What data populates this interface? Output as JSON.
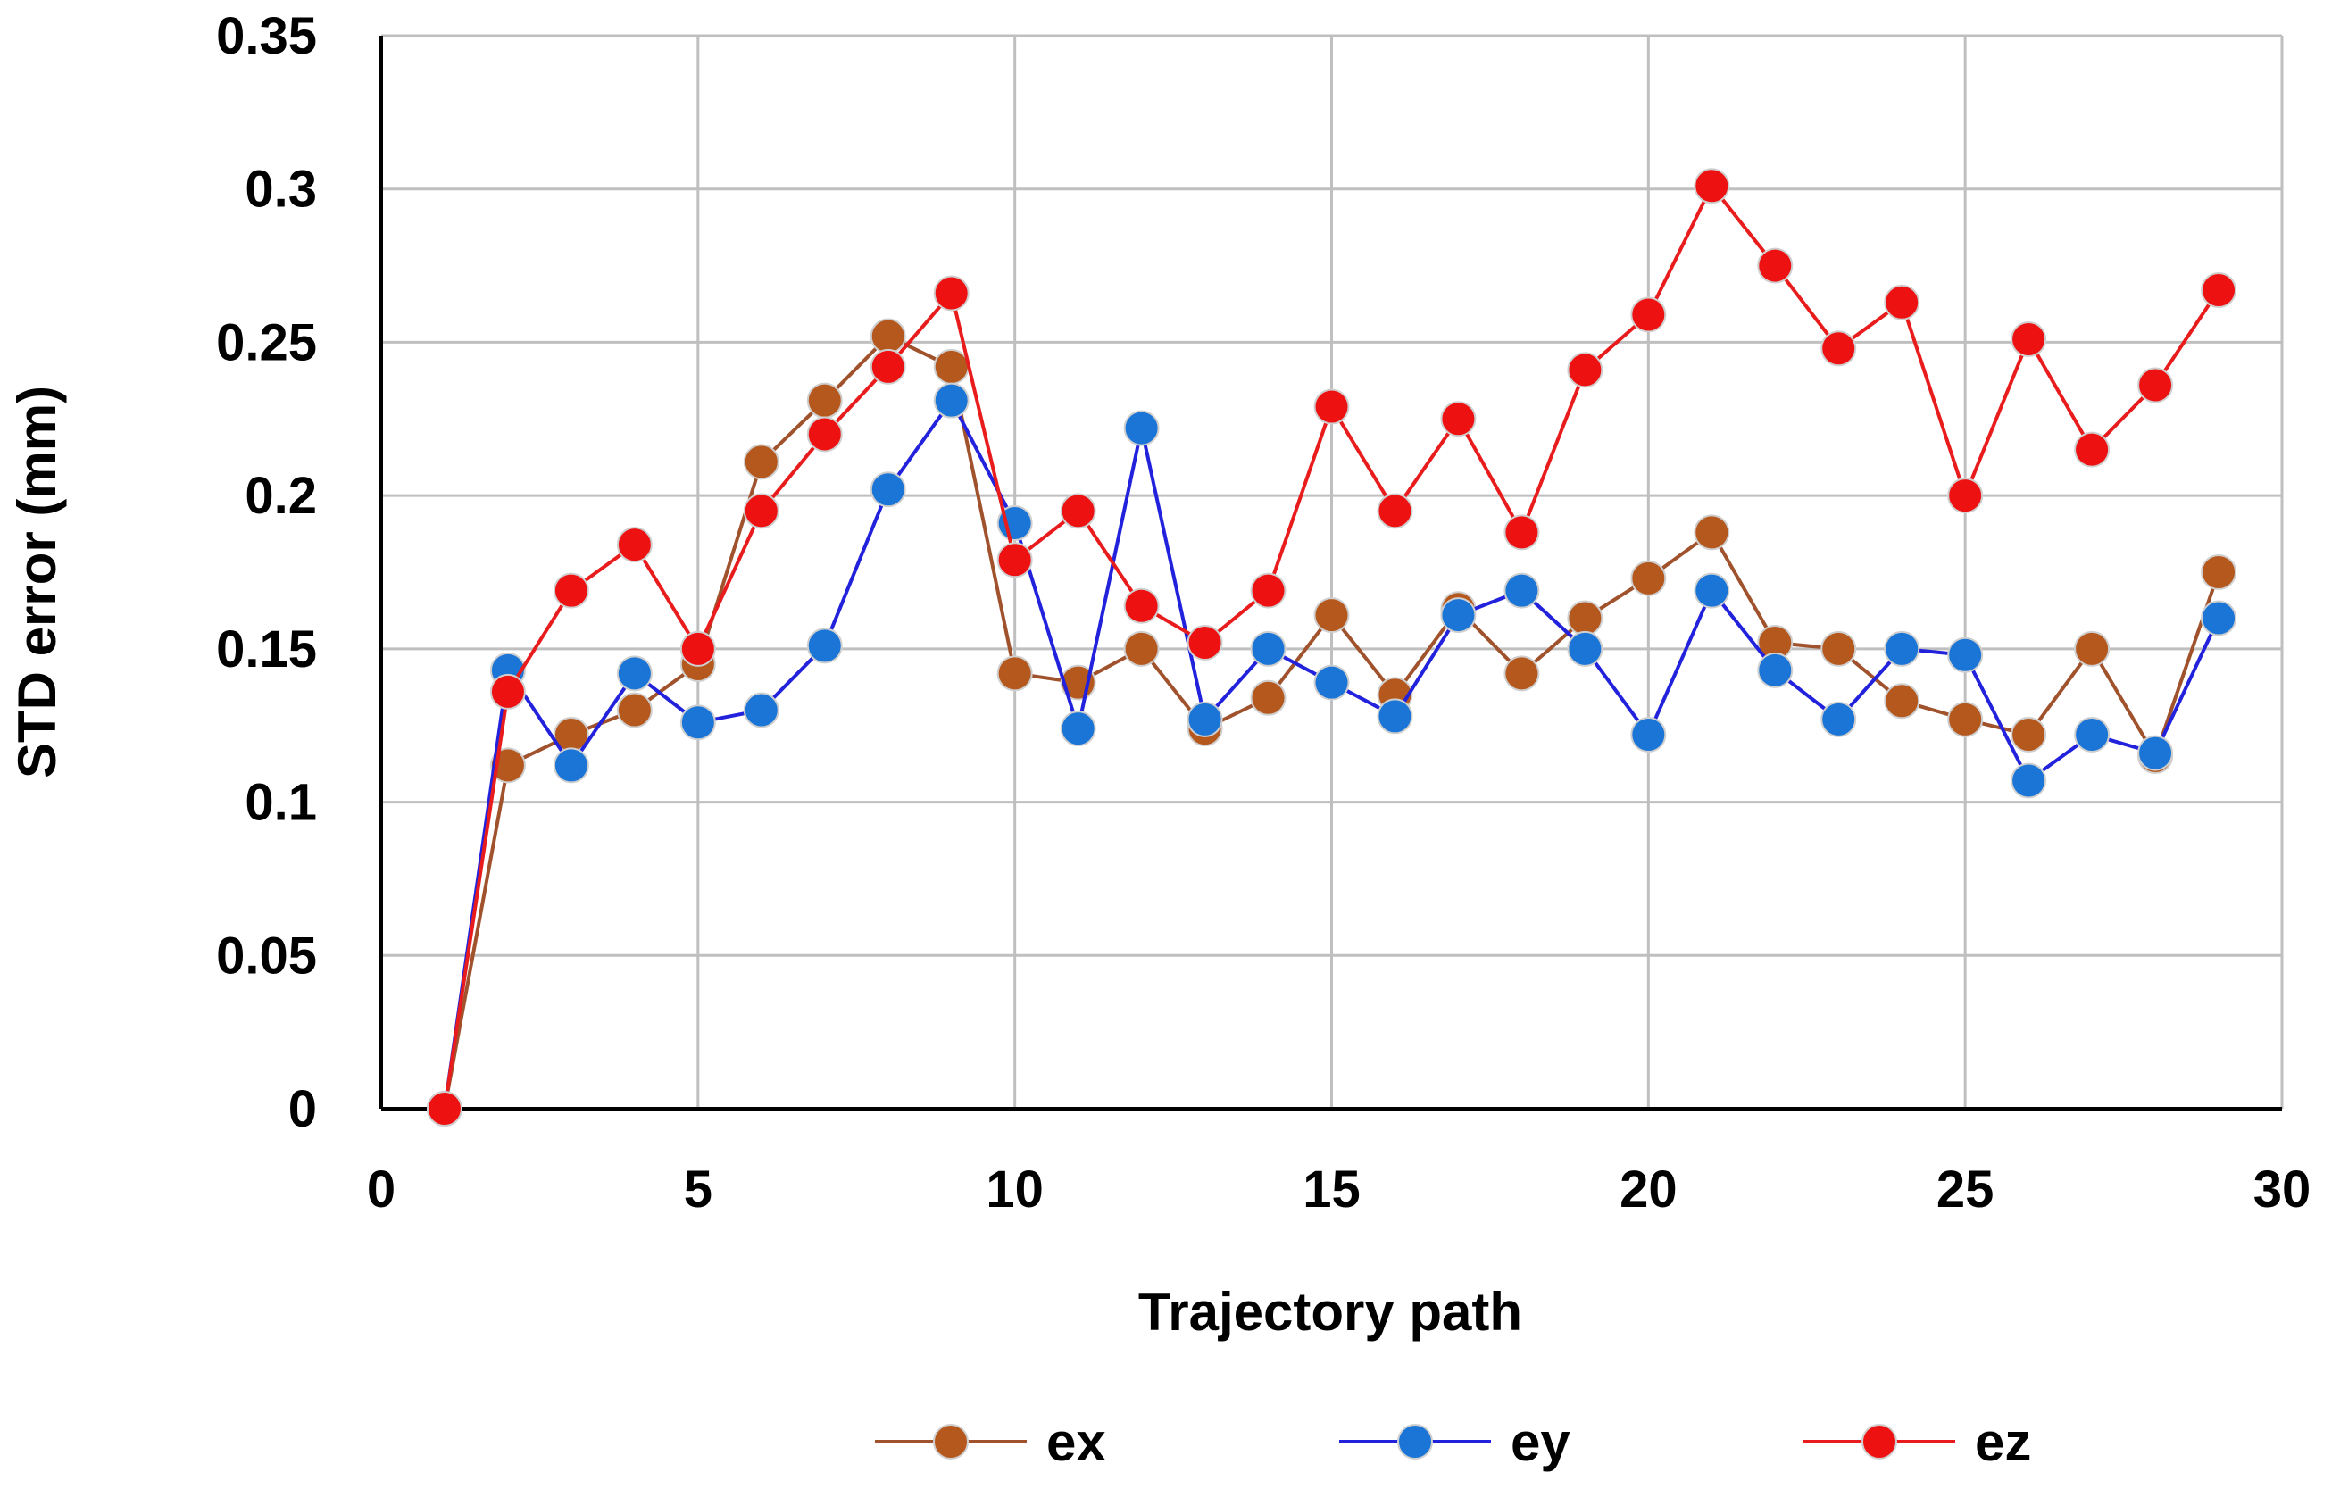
{
  "chart_data": {
    "type": "line",
    "title": "",
    "xlabel": "Trajectory path",
    "ylabel": "STD error (mm)",
    "xlim": [
      0,
      30
    ],
    "ylim": [
      0,
      0.35
    ],
    "xticks": [
      0,
      5,
      10,
      15,
      20,
      25,
      30
    ],
    "yticks": [
      0,
      0.05,
      0.1,
      0.15,
      0.2,
      0.25,
      0.3,
      0.35
    ],
    "xtick_labels": [
      "0",
      "5",
      "10",
      "15",
      "20",
      "25",
      "30"
    ],
    "ytick_labels": [
      "0",
      "0.05",
      "0.1",
      "0.15",
      "0.2",
      "0.25",
      "0.3",
      "0.35"
    ],
    "grid": true,
    "legend_position": "bottom",
    "x": [
      1,
      2,
      3,
      4,
      5,
      6,
      7,
      8,
      9,
      10,
      11,
      12,
      13,
      14,
      15,
      16,
      17,
      18,
      19,
      20,
      21,
      22,
      23,
      24,
      25,
      26,
      27,
      28,
      29
    ],
    "series": [
      {
        "name": "ex",
        "line_color": "#a0522d",
        "marker_color": "#b5581d",
        "values": [
          0,
          0.112,
          0.122,
          0.13,
          0.145,
          0.211,
          0.231,
          0.252,
          0.242,
          0.142,
          0.139,
          0.15,
          0.124,
          0.134,
          0.161,
          0.135,
          0.163,
          0.142,
          0.16,
          0.173,
          0.188,
          0.152,
          0.15,
          0.133,
          0.127,
          0.122,
          0.15,
          0.115,
          0.175
        ]
      },
      {
        "name": "ey",
        "line_color": "#2222dd",
        "marker_color": "#1a75d6",
        "values": [
          0,
          0.143,
          0.112,
          0.142,
          0.126,
          0.13,
          0.151,
          0.202,
          0.231,
          0.191,
          0.124,
          0.222,
          0.127,
          0.15,
          0.139,
          0.128,
          0.161,
          0.169,
          0.15,
          0.122,
          0.169,
          0.143,
          0.127,
          0.15,
          0.148,
          0.107,
          0.122,
          0.116,
          0.16
        ]
      },
      {
        "name": "ez",
        "line_color": "#e81c1c",
        "marker_color": "#ee1111",
        "values": [
          0,
          0.136,
          0.169,
          0.184,
          0.15,
          0.195,
          0.22,
          0.242,
          0.266,
          0.179,
          0.195,
          0.164,
          0.152,
          0.169,
          0.229,
          0.195,
          0.225,
          0.188,
          0.241,
          0.259,
          0.301,
          0.275,
          0.248,
          0.263,
          0.2,
          0.251,
          0.215,
          0.236,
          0.267
        ]
      }
    ]
  }
}
